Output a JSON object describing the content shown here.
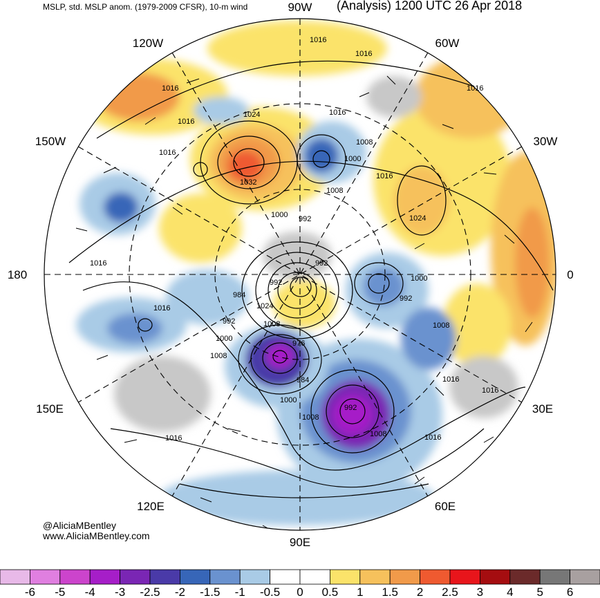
{
  "header": {
    "subtitle": "MSLP, std. MSLP anom. (1979-2009 CFSR), 10-m wind",
    "analysis": "(Analysis) 1200 UTC 26 Apr 2018"
  },
  "credit": {
    "handle": "@AliciaMBentley",
    "url": "www.AliciaMBentley.com"
  },
  "longitude_labels": [
    {
      "text": "90W",
      "deg": -90
    },
    {
      "text": "120W",
      "deg": -120
    },
    {
      "text": "60W",
      "deg": -60
    },
    {
      "text": "150W",
      "deg": -150
    },
    {
      "text": "30W",
      "deg": -30
    },
    {
      "text": "180",
      "deg": 180
    },
    {
      "text": "0",
      "deg": 0
    },
    {
      "text": "150E",
      "deg": 150
    },
    {
      "text": "30E",
      "deg": 30
    },
    {
      "text": "120E",
      "deg": 120
    },
    {
      "text": "60E",
      "deg": 60
    },
    {
      "text": "90E",
      "deg": 90
    }
  ],
  "contour_labels": [
    "1016",
    "1016",
    "1016",
    "1016",
    "1016",
    "1016",
    "1024",
    "1032",
    "1016",
    "1008",
    "1000",
    "1016",
    "1008",
    "1024",
    "1000",
    "992",
    "992",
    "992",
    "1000",
    "984",
    "1024",
    "1008",
    "992",
    "1016",
    "992",
    "1008",
    "1000",
    "1008",
    "976",
    "984",
    "1016",
    "1000",
    "992",
    "1008",
    "1016",
    "1008",
    "1016",
    "1016",
    "1016"
  ],
  "colorbar": {
    "ticks": [
      "-6",
      "-5",
      "-4",
      "-3",
      "-2.5",
      "-2",
      "-1.5",
      "-1",
      "-0.5",
      "0",
      "0.5",
      "1",
      "1.5",
      "2",
      "2.5",
      "3",
      "4",
      "5",
      "6"
    ],
    "colors": [
      "#e8b9e8",
      "#e07fe0",
      "#cc44cc",
      "#a61ec8",
      "#7a26b4",
      "#4a3aa8",
      "#3766b8",
      "#6a92cf",
      "#a9cbe6",
      "#ffffff",
      "#ffffff",
      "#fbe36a",
      "#f6c15c",
      "#f19a4a",
      "#ef5a30",
      "#e8151b",
      "#a50d10",
      "#6b2a2a",
      "#777777",
      "#a8a0a0"
    ]
  }
}
